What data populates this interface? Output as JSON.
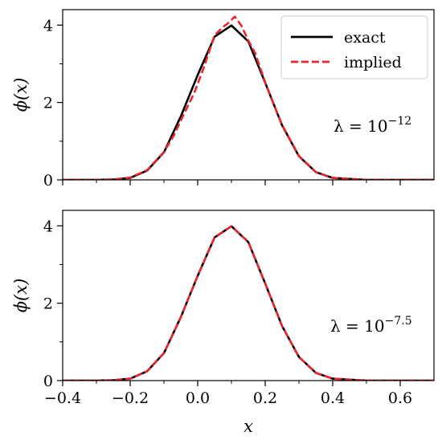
{
  "chart_data": [
    {
      "type": "line",
      "ylabel": "ϕ(x)",
      "xlim": [
        -0.4,
        0.7
      ],
      "ylim": [
        0,
        4.4
      ],
      "yticks": [
        0,
        2,
        4
      ],
      "ytick_labels": [
        "0",
        "2",
        "4"
      ],
      "xticks": [
        -0.4,
        -0.2,
        0.0,
        0.2,
        0.4,
        0.6
      ],
      "xtick_labels": [],
      "grid": false,
      "legend": {
        "placement": "top-right",
        "entries": [
          "exact",
          "implied"
        ]
      },
      "annotation": {
        "base": "λ = 10",
        "exponent": "−12"
      },
      "series": [
        {
          "name": "exact",
          "color": "#000000",
          "style": "solid",
          "x": [
            -0.4,
            -0.3,
            -0.25,
            -0.2,
            -0.15,
            -0.1,
            -0.05,
            0.0,
            0.05,
            0.1,
            0.15,
            0.2,
            0.25,
            0.3,
            0.35,
            0.4,
            0.5,
            0.6,
            0.7
          ],
          "y": [
            0.0,
            0.0,
            0.01,
            0.05,
            0.24,
            0.71,
            1.64,
            2.71,
            3.7,
            3.99,
            3.58,
            2.51,
            1.41,
            0.61,
            0.2,
            0.05,
            0.0,
            0.0,
            0.0
          ]
        },
        {
          "name": "implied",
          "color": "#e8262b",
          "style": "dashed",
          "x": [
            -0.4,
            -0.3,
            -0.25,
            -0.2,
            -0.15,
            -0.1,
            -0.07,
            -0.04,
            -0.01,
            0.02,
            0.05,
            0.075,
            0.09,
            0.11,
            0.13,
            0.15,
            0.17,
            0.2,
            0.23,
            0.25,
            0.3,
            0.35,
            0.4,
            0.5,
            0.6,
            0.7
          ],
          "y": [
            0.0,
            0.0,
            0.01,
            0.06,
            0.25,
            0.72,
            1.16,
            1.72,
            2.25,
            2.95,
            3.74,
            3.95,
            4.05,
            4.22,
            3.98,
            3.6,
            3.28,
            2.52,
            1.85,
            1.42,
            0.62,
            0.2,
            0.05,
            0.0,
            0.0,
            0.0
          ]
        }
      ]
    },
    {
      "type": "line",
      "ylabel": "ϕ(x)",
      "xlabel": "x",
      "xlim": [
        -0.4,
        0.7
      ],
      "ylim": [
        0,
        4.4
      ],
      "yticks": [
        0,
        2,
        4
      ],
      "ytick_labels": [
        "0",
        "2",
        "4"
      ],
      "xticks": [
        -0.4,
        -0.2,
        0.0,
        0.2,
        0.4,
        0.6
      ],
      "xtick_labels": [
        "−0.4",
        "−0.2",
        "0.0",
        "0.2",
        "0.4",
        "0.6"
      ],
      "grid": false,
      "annotation": {
        "base": "λ = 10",
        "exponent": "−7.5"
      },
      "series": [
        {
          "name": "exact",
          "color": "#000000",
          "style": "solid",
          "x": [
            -0.4,
            -0.3,
            -0.25,
            -0.2,
            -0.15,
            -0.1,
            -0.05,
            0.0,
            0.05,
            0.1,
            0.15,
            0.2,
            0.25,
            0.3,
            0.35,
            0.4,
            0.5,
            0.6,
            0.7
          ],
          "y": [
            0.0,
            0.0,
            0.01,
            0.05,
            0.24,
            0.71,
            1.64,
            2.71,
            3.7,
            3.99,
            3.58,
            2.51,
            1.41,
            0.61,
            0.2,
            0.05,
            0.0,
            0.0,
            0.0
          ]
        },
        {
          "name": "implied",
          "color": "#e8262b",
          "style": "dashed",
          "x": [
            -0.4,
            -0.3,
            -0.25,
            -0.2,
            -0.15,
            -0.1,
            -0.05,
            0.0,
            0.05,
            0.1,
            0.15,
            0.2,
            0.25,
            0.3,
            0.35,
            0.4,
            0.5,
            0.6,
            0.7
          ],
          "y": [
            0.0,
            0.0,
            0.01,
            0.05,
            0.24,
            0.71,
            1.64,
            2.71,
            3.7,
            3.99,
            3.58,
            2.51,
            1.41,
            0.61,
            0.2,
            0.05,
            0.0,
            0.0,
            0.0
          ]
        }
      ]
    }
  ]
}
